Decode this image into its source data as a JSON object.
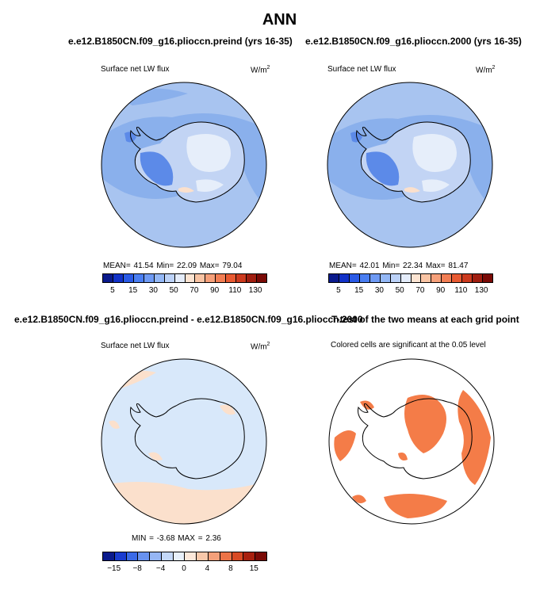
{
  "figure": {
    "title": "ANN",
    "colors": {
      "ocean_base": "#a8c4f0",
      "ocean_mid": "#8ab0ec",
      "ice_light": "#e6eefa",
      "ice_mid": "#c2d4f4",
      "ice_dark": "#5c8ae8",
      "diff_base": "#d8e8fa",
      "diff_pos": "#fbe0cc",
      "sig": "#f47c48",
      "coast": "#000000"
    }
  },
  "panels": [
    {
      "title": "e.e12.B1850CN.f09_g16.plioccn.preind (yrs 16-35)",
      "subtitle": "Surface net LW flux",
      "units": "W/m",
      "units_sup": "2",
      "stats": "MEAN=  41.54   Min=  22.09   Max=  79.04"
    },
    {
      "title": "e.e12.B1850CN.f09_g16.plioccn.2000 (yrs 16-35)",
      "subtitle": "Surface net LW flux",
      "units": "W/m",
      "units_sup": "2",
      "stats": "MEAN=  42.01   Min=  22.34   Max=  81.47"
    },
    {
      "title": "e.e12.B1850CN.f09_g16.plioccn.preind - e.e12.B1850CN.f09_g16.plioccn.2000",
      "subtitle": "Surface net LW flux",
      "units": "W/m",
      "units_sup": "2",
      "stats": "MIN =   -3.68  MAX =    2.36"
    },
    {
      "title": "T-test of the two means at each grid point",
      "subtitle": "Colored cells are significant at the 0.05 level"
    }
  ],
  "colorbar_abs": {
    "colors": [
      "#0a1a8c",
      "#1232c8",
      "#2a5ae6",
      "#4a7ef2",
      "#6e9af4",
      "#94b8f6",
      "#bcd2f8",
      "#e4ecfa",
      "#fce4d2",
      "#f9c4a4",
      "#f6a07a",
      "#f27e54",
      "#e85a32",
      "#cc3a1e",
      "#a01e10",
      "#7a0a06"
    ],
    "ticks": [
      "5",
      "15",
      "30",
      "50",
      "70",
      "90",
      "110",
      "130"
    ]
  },
  "colorbar_diff": {
    "colors": [
      "#0a1a8c",
      "#1a3cd0",
      "#3a6ae8",
      "#6892f0",
      "#96b6f4",
      "#c4d8f8",
      "#e8f0fa",
      "#fce8da",
      "#f8c8aa",
      "#f4a07a",
      "#ec7448",
      "#d84a24",
      "#a8200e",
      "#7a0a06"
    ],
    "ticks": [
      "−15",
      "−8",
      "−4",
      "0",
      "4",
      "8",
      "15"
    ]
  }
}
